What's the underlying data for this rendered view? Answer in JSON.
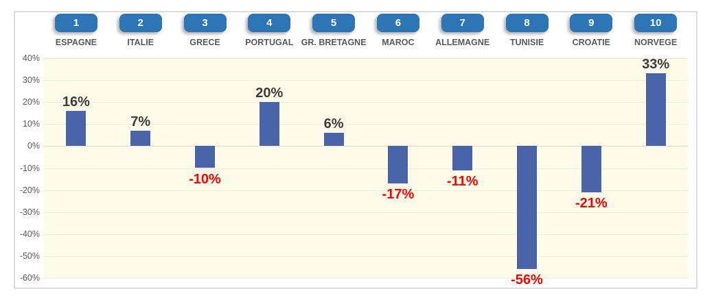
{
  "chart_data": {
    "type": "bar",
    "title": "",
    "legend": "none",
    "grid": true,
    "ranks": [
      "1",
      "2",
      "3",
      "4",
      "5",
      "6",
      "7",
      "8",
      "9",
      "10"
    ],
    "categories": [
      "ESPAGNE",
      "ITALIE",
      "GRECE",
      "PORTUGAL",
      "GR. BRETAGNE",
      "MAROC",
      "ALLEMAGNE",
      "TUNISIE",
      "CROATIE",
      "NORVEGE"
    ],
    "values": [
      16,
      7,
      -10,
      20,
      6,
      -17,
      -11,
      -56,
      -21,
      33
    ],
    "value_labels": [
      "16%",
      "7%",
      "-10%",
      "20%",
      "6%",
      "-17%",
      "-11%",
      "-56%",
      "-21%",
      "33%"
    ],
    "y_ticks": [
      "40%",
      "30%",
      "20%",
      "10%",
      "0%",
      "-10%",
      "-20%",
      "-30%",
      "-40%",
      "-50%",
      "-60%"
    ],
    "y_tick_values": [
      40,
      30,
      20,
      10,
      0,
      -10,
      -20,
      -30,
      -40,
      -50,
      -60
    ],
    "ylim": [
      -60,
      40
    ],
    "colors": {
      "bar": "#4A64A9",
      "badge": "#2E75B6",
      "badge_text": "#FFFFFF",
      "positive_label": "#3B3B3B",
      "negative_label": "#FF0000",
      "plot_bg": "#FEFCE8",
      "gridline": "#EDEBDC",
      "zero_line": "#DCD9C8",
      "axis_text": "#595959",
      "category_text": "#595959",
      "frame_border": "#DCDCDC"
    }
  }
}
